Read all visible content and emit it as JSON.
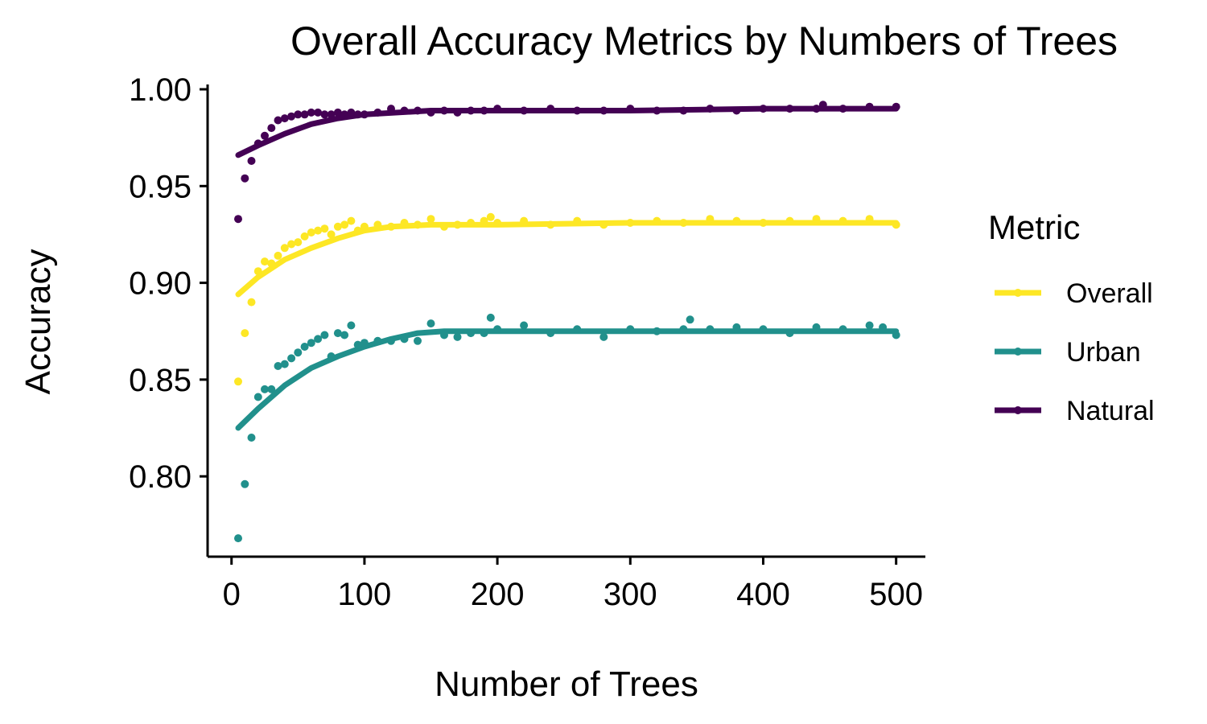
{
  "chart_data": {
    "type": "scatter",
    "title": "Overall Accuracy Metrics by Numbers of Trees",
    "xlabel": "Number of Trees",
    "ylabel": "Accuracy",
    "xlim": [
      -18,
      522
    ],
    "ylim": [
      0.7585,
      1.0025
    ],
    "xticks": [
      0,
      100,
      200,
      300,
      400,
      500
    ],
    "yticks": [
      0.8,
      0.85,
      0.9,
      0.95,
      1.0
    ],
    "xtick_labels": [
      "0",
      "100",
      "200",
      "300",
      "400",
      "500"
    ],
    "ytick_labels": [
      "0.80",
      "0.85",
      "0.90",
      "0.95",
      "1.00"
    ],
    "grid": false,
    "legend_position": "right",
    "legend_title": "Metric",
    "series": [
      {
        "name": "Overall",
        "color": "#FDE725",
        "x": [
          5,
          10,
          15,
          20,
          25,
          30,
          35,
          40,
          45,
          50,
          55,
          60,
          65,
          70,
          75,
          80,
          85,
          90,
          95,
          100,
          110,
          120,
          130,
          140,
          150,
          160,
          170,
          180,
          190,
          195,
          200,
          220,
          240,
          260,
          280,
          300,
          320,
          340,
          360,
          380,
          400,
          420,
          440,
          460,
          480,
          500
        ],
        "y": [
          0.849,
          0.874,
          0.89,
          0.906,
          0.911,
          0.91,
          0.914,
          0.918,
          0.92,
          0.921,
          0.924,
          0.926,
          0.927,
          0.928,
          0.925,
          0.929,
          0.93,
          0.932,
          0.927,
          0.929,
          0.93,
          0.929,
          0.931,
          0.93,
          0.933,
          0.929,
          0.93,
          0.931,
          0.932,
          0.934,
          0.931,
          0.932,
          0.93,
          0.932,
          0.93,
          0.931,
          0.932,
          0.931,
          0.933,
          0.932,
          0.931,
          0.932,
          0.933,
          0.932,
          0.933,
          0.93
        ],
        "fit_x": [
          5,
          20,
          40,
          60,
          80,
          100,
          120,
          150,
          200,
          300,
          400,
          500
        ],
        "fit_y": [
          0.894,
          0.903,
          0.912,
          0.918,
          0.923,
          0.927,
          0.929,
          0.93,
          0.93,
          0.931,
          0.931,
          0.931
        ]
      },
      {
        "name": "Urban",
        "color": "#21908C",
        "x": [
          5,
          10,
          15,
          20,
          25,
          30,
          35,
          40,
          45,
          50,
          55,
          60,
          65,
          70,
          75,
          80,
          85,
          90,
          95,
          100,
          110,
          120,
          130,
          140,
          150,
          160,
          170,
          180,
          190,
          195,
          200,
          220,
          240,
          260,
          280,
          300,
          320,
          340,
          345,
          360,
          380,
          400,
          420,
          440,
          460,
          480,
          490,
          500
        ],
        "y": [
          0.768,
          0.796,
          0.82,
          0.841,
          0.845,
          0.845,
          0.857,
          0.858,
          0.861,
          0.864,
          0.867,
          0.869,
          0.871,
          0.873,
          0.862,
          0.874,
          0.873,
          0.878,
          0.868,
          0.869,
          0.87,
          0.87,
          0.871,
          0.87,
          0.879,
          0.873,
          0.872,
          0.874,
          0.874,
          0.882,
          0.876,
          0.878,
          0.874,
          0.876,
          0.872,
          0.876,
          0.875,
          0.876,
          0.881,
          0.876,
          0.877,
          0.876,
          0.874,
          0.877,
          0.876,
          0.878,
          0.877,
          0.873
        ],
        "fit_x": [
          5,
          20,
          40,
          60,
          80,
          100,
          120,
          140,
          160,
          200,
          300,
          400,
          500
        ],
        "fit_y": [
          0.825,
          0.835,
          0.847,
          0.856,
          0.862,
          0.867,
          0.871,
          0.874,
          0.875,
          0.875,
          0.875,
          0.875,
          0.875
        ]
      },
      {
        "name": "Natural",
        "color": "#440154",
        "x": [
          5,
          10,
          15,
          20,
          25,
          30,
          35,
          40,
          45,
          50,
          55,
          60,
          65,
          70,
          75,
          80,
          85,
          90,
          95,
          100,
          110,
          120,
          130,
          140,
          150,
          160,
          170,
          180,
          190,
          200,
          220,
          240,
          260,
          280,
          300,
          320,
          340,
          360,
          380,
          400,
          420,
          440,
          445,
          460,
          480,
          500
        ],
        "y": [
          0.933,
          0.954,
          0.963,
          0.972,
          0.976,
          0.98,
          0.984,
          0.985,
          0.986,
          0.987,
          0.987,
          0.988,
          0.988,
          0.987,
          0.987,
          0.988,
          0.987,
          0.988,
          0.987,
          0.987,
          0.988,
          0.99,
          0.989,
          0.989,
          0.988,
          0.989,
          0.988,
          0.989,
          0.989,
          0.99,
          0.989,
          0.99,
          0.989,
          0.989,
          0.99,
          0.989,
          0.989,
          0.99,
          0.989,
          0.99,
          0.99,
          0.99,
          0.992,
          0.99,
          0.991,
          0.991
        ],
        "fit_x": [
          5,
          20,
          40,
          60,
          80,
          100,
          150,
          200,
          300,
          400,
          500
        ],
        "fit_y": [
          0.966,
          0.971,
          0.977,
          0.982,
          0.985,
          0.987,
          0.989,
          0.989,
          0.989,
          0.99,
          0.99
        ]
      }
    ]
  }
}
